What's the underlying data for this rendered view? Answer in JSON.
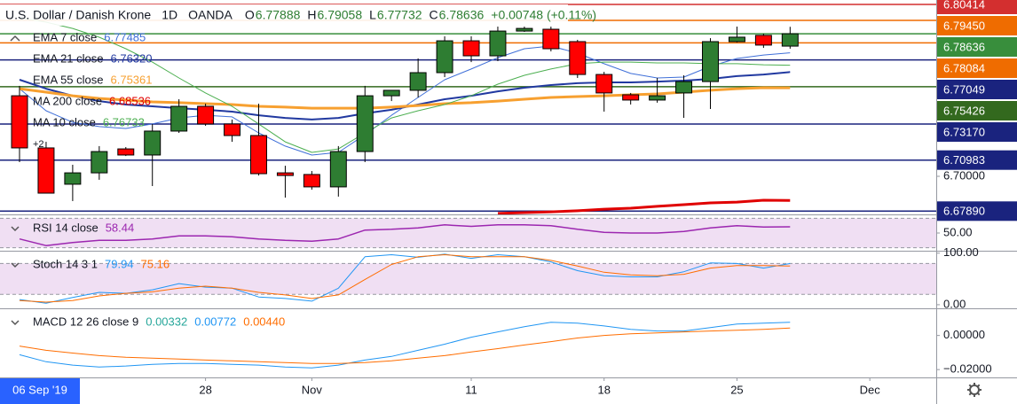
{
  "chart_data": [
    {
      "type": "candlestick",
      "symbol": "U.S. Dollar / Danish Krone",
      "interval": "1D",
      "source": "OANDA",
      "quote_keys": [
        "O",
        "H",
        "L",
        "C"
      ],
      "change": "+0.00748 (+0.11%)",
      "cursor_date": "06 Sep '19",
      "x": [
        0,
        1,
        2,
        3,
        4,
        5,
        6,
        7,
        8,
        9,
        10,
        11,
        12,
        13,
        14,
        15,
        16,
        17,
        18,
        19,
        20,
        21,
        22,
        23,
        24,
        25,
        26,
        27,
        28,
        29
      ],
      "xlim": [
        -0.735,
        34.5
      ],
      "xticks": [
        {
          "value": 7,
          "label": "28"
        },
        {
          "value": 11,
          "label": "Nov"
        },
        {
          "value": 17,
          "label": "11"
        },
        {
          "value": 22,
          "label": "18"
        },
        {
          "value": 27,
          "label": "25"
        },
        {
          "value": 32,
          "label": "Dec"
        }
      ],
      "open": [
        6.7488,
        6.7172,
        6.6952,
        6.7021,
        6.7166,
        6.7129,
        6.7274,
        6.7424,
        6.7317,
        6.7247,
        6.7021,
        6.7011,
        6.6936,
        6.715,
        6.7488,
        6.7521,
        6.7628,
        6.7821,
        6.773,
        6.788,
        6.7891,
        6.7816,
        6.7617,
        6.7494,
        6.7462,
        6.7505,
        6.7574,
        6.7816,
        6.7854,
        6.77888
      ],
      "high": [
        6.7548,
        6.7209,
        6.707,
        6.7183,
        6.7177,
        6.7317,
        6.7467,
        6.744,
        6.7344,
        6.744,
        6.7064,
        6.7032,
        6.7183,
        6.7548,
        6.7521,
        6.7714,
        6.7848,
        6.7848,
        6.7907,
        6.7907,
        6.7907,
        6.7827,
        6.7633,
        6.7505,
        6.7596,
        6.7612,
        6.7837,
        6.7907,
        6.7864,
        6.79058
      ],
      "low": [
        6.7086,
        6.6898,
        6.685,
        6.6979,
        6.7123,
        6.6941,
        6.7263,
        6.7306,
        6.7209,
        6.7005,
        6.6871,
        6.6919,
        6.6877,
        6.7086,
        6.7456,
        6.7478,
        6.7601,
        6.7692,
        6.7698,
        6.7875,
        6.7757,
        6.7596,
        6.7392,
        6.7435,
        6.7446,
        6.7354,
        6.7408,
        6.7811,
        6.7778,
        6.77732
      ],
      "close": [
        6.7172,
        6.6898,
        6.7021,
        6.715,
        6.7129,
        6.7274,
        6.7424,
        6.7317,
        6.7247,
        6.7016,
        6.7005,
        6.6936,
        6.715,
        6.7488,
        6.7521,
        6.7628,
        6.7821,
        6.773,
        6.788,
        6.7896,
        6.7773,
        6.7617,
        6.7505,
        6.7462,
        6.7488,
        6.7574,
        6.7816,
        6.7843,
        6.7795,
        6.78636
      ],
      "up_color": "#2e7d32",
      "down_color": "#ff0000",
      "series": [
        {
          "name": "EMA 7 close",
          "color": "#3f6fd8",
          "width": 1,
          "last_label": "6.77485",
          "values": [
            6.7531,
            6.7397,
            6.7327,
            6.7301,
            6.729,
            6.7317,
            6.7354,
            6.737,
            6.736,
            6.7263,
            6.7183,
            6.7129,
            6.7145,
            6.7252,
            6.737,
            6.7478,
            6.7585,
            6.765,
            6.7719,
            6.7773,
            6.7789,
            6.7746,
            6.7682,
            6.7623,
            6.7596,
            6.7601,
            6.7666,
            6.7714,
            6.7735,
            6.77485
          ]
        },
        {
          "name": "EMA 21 close",
          "color": "#2139a0",
          "width": 2,
          "last_label": "6.76320",
          "values": [
            6.7585,
            6.7531,
            6.7488,
            6.7456,
            6.7435,
            6.7424,
            6.7413,
            6.7403,
            6.7392,
            6.737,
            6.7354,
            6.7344,
            6.7354,
            6.7381,
            6.7403,
            6.7435,
            6.7467,
            6.7488,
            6.7515,
            6.7537,
            6.7553,
            6.7564,
            6.7569,
            6.7569,
            6.7574,
            6.758,
            6.759,
            6.7607,
            6.7617,
            6.7632
          ]
        },
        {
          "name": "EMA 55 close",
          "color": "#f7a030",
          "width": 3,
          "last_label": "6.75361",
          "values": [
            6.7531,
            6.751,
            6.7488,
            6.7472,
            6.7462,
            6.7451,
            6.7446,
            6.744,
            6.7435,
            6.7424,
            6.7419,
            6.7413,
            6.7413,
            6.7413,
            6.7419,
            6.7429,
            6.744,
            6.7446,
            6.7456,
            6.7467,
            6.7478,
            6.7483,
            6.7488,
            6.7494,
            6.7499,
            6.751,
            6.7521,
            6.7531,
            6.7537,
            6.75361
          ]
        },
        {
          "name": "MA 200 close",
          "color": "#e00000",
          "width": 3,
          "last_label": "6.68536",
          "values": [
            null,
            null,
            null,
            null,
            null,
            null,
            null,
            null,
            null,
            null,
            null,
            null,
            null,
            null,
            null,
            null,
            null,
            null,
            6.6775,
            6.678,
            6.6785,
            6.6791,
            6.6801,
            6.6807,
            6.6818,
            6.6828,
            6.6839,
            6.6844,
            6.6855,
            6.68536
          ]
        },
        {
          "name": "MA 10 close",
          "color": "#4caf50",
          "width": 1,
          "last_label": "6.76733",
          "values": [
            6.7961,
            6.7934,
            6.7896,
            6.7843,
            6.7773,
            6.7692,
            6.7596,
            6.7505,
            6.7424,
            6.7317,
            6.7209,
            6.7145,
            6.7166,
            6.7263,
            6.7354,
            6.7397,
            6.7435,
            6.7488,
            6.7558,
            6.7612,
            6.765,
            6.7682,
            6.7692,
            6.7692,
            6.7687,
            6.7687,
            6.7682,
            6.7682,
            6.7676,
            6.76733
          ]
        }
      ],
      "hidden_count": "+2",
      "price_lines": [
        {
          "value": 6.80414,
          "label": "6.80414",
          "color": "#d32f2f"
        },
        {
          "value": 6.7945,
          "label": "6.79450",
          "color": "#ef6c00"
        },
        {
          "value": 6.78636,
          "label": "6.78636",
          "color": "#388e3c"
        },
        {
          "value": 6.78084,
          "label": "6.78084",
          "color": "#ef6c00"
        },
        {
          "value": 6.77049,
          "label": "6.77049",
          "color": "#1a237e"
        },
        {
          "value": 6.75426,
          "label": "6.75426",
          "color": "#33691e"
        },
        {
          "value": 6.7317,
          "label": "6.73170",
          "color": "#1a237e"
        },
        {
          "value": 6.70983,
          "label": "6.70983",
          "color": "#1a237e"
        },
        {
          "value": 6.6789,
          "label": "6.67890",
          "color": "#1a237e"
        }
      ],
      "ylim": [
        6.67692,
        6.80682
      ],
      "yticks": [
        {
          "value": 6.7,
          "label": "6.70000"
        }
      ]
    },
    {
      "type": "line",
      "title": "RSI 14 close",
      "series": [
        {
          "color": "#9c27b0",
          "width": 1.5,
          "last_label": "58.44",
          "values": [
            42,
            33,
            37,
            40,
            40,
            42,
            46,
            46,
            45,
            42,
            40,
            39,
            42,
            54,
            55,
            57,
            61,
            59,
            61,
            61,
            60,
            55,
            51,
            50,
            50,
            52,
            57,
            60,
            58,
            58.44
          ]
        }
      ],
      "band": [
        30,
        70
      ],
      "band_color": "#9c27b0",
      "ylim": [
        26,
        74
      ],
      "yticks": [
        {
          "value": 50,
          "label": "50.00"
        }
      ]
    },
    {
      "type": "line",
      "title": "Stoch 14 3 1",
      "series": [
        {
          "color": "#2196f3",
          "width": 1,
          "last_label": "79.94",
          "values": [
            10,
            3,
            14,
            24,
            22,
            29,
            41,
            34,
            32,
            15,
            12,
            7,
            32,
            93,
            97,
            92,
            98,
            90,
            97,
            93,
            83,
            66,
            56,
            54,
            54,
            64,
            81,
            80,
            71,
            79.94
          ]
        },
        {
          "color": "#ff6d00",
          "width": 1,
          "last_label": "75.16",
          "values": [
            8,
            5,
            8,
            17,
            22,
            25,
            32,
            36,
            32,
            24,
            19,
            12,
            19,
            49,
            78,
            93,
            97,
            93,
            93,
            93,
            86,
            75,
            63,
            58,
            56,
            59,
            71,
            76,
            76,
            75.16
          ]
        }
      ],
      "band": [
        20,
        80
      ],
      "band_color": "#9c27b0",
      "ylim": [
        -7,
        103
      ],
      "yticks": [
        {
          "value": 100,
          "label": "100.00"
        },
        {
          "value": 0,
          "label": "0.00"
        }
      ]
    },
    {
      "type": "line",
      "title": "MACD 12 26 close 9",
      "histogram_label": "0.00332",
      "histogram_color": "#26a69a",
      "series": [
        {
          "color": "#2196f3",
          "width": 1,
          "last_label": "0.00772",
          "values": [
            -0.0113,
            -0.0154,
            -0.0174,
            -0.0185,
            -0.0179,
            -0.0169,
            -0.0164,
            -0.0164,
            -0.0169,
            -0.0174,
            -0.0185,
            -0.019,
            -0.0174,
            -0.0144,
            -0.0123,
            -0.0087,
            -0.0051,
            -0.001,
            0.0021,
            0.0051,
            0.0077,
            0.0072,
            0.0056,
            0.0036,
            0.0026,
            0.0026,
            0.0046,
            0.0067,
            0.0072,
            0.00772
          ]
        },
        {
          "color": "#ff6d00",
          "width": 1,
          "last_label": "0.00440",
          "values": [
            -0.0062,
            -0.0087,
            -0.0103,
            -0.0118,
            -0.0128,
            -0.0133,
            -0.0138,
            -0.0144,
            -0.0149,
            -0.0154,
            -0.0159,
            -0.0164,
            -0.0164,
            -0.0159,
            -0.0149,
            -0.0133,
            -0.0118,
            -0.0097,
            -0.0077,
            -0.0056,
            -0.0036,
            -0.0015,
            0,
            0.001,
            0.0015,
            0.0021,
            0.0026,
            0.0031,
            0.0036,
            0.0044
          ]
        }
      ],
      "ylim": [
        -0.0246,
        0.0154
      ],
      "yticks": [
        {
          "value": 0,
          "label": "0.00000"
        },
        {
          "value": -0.02,
          "label": "−0.02000"
        }
      ]
    }
  ]
}
